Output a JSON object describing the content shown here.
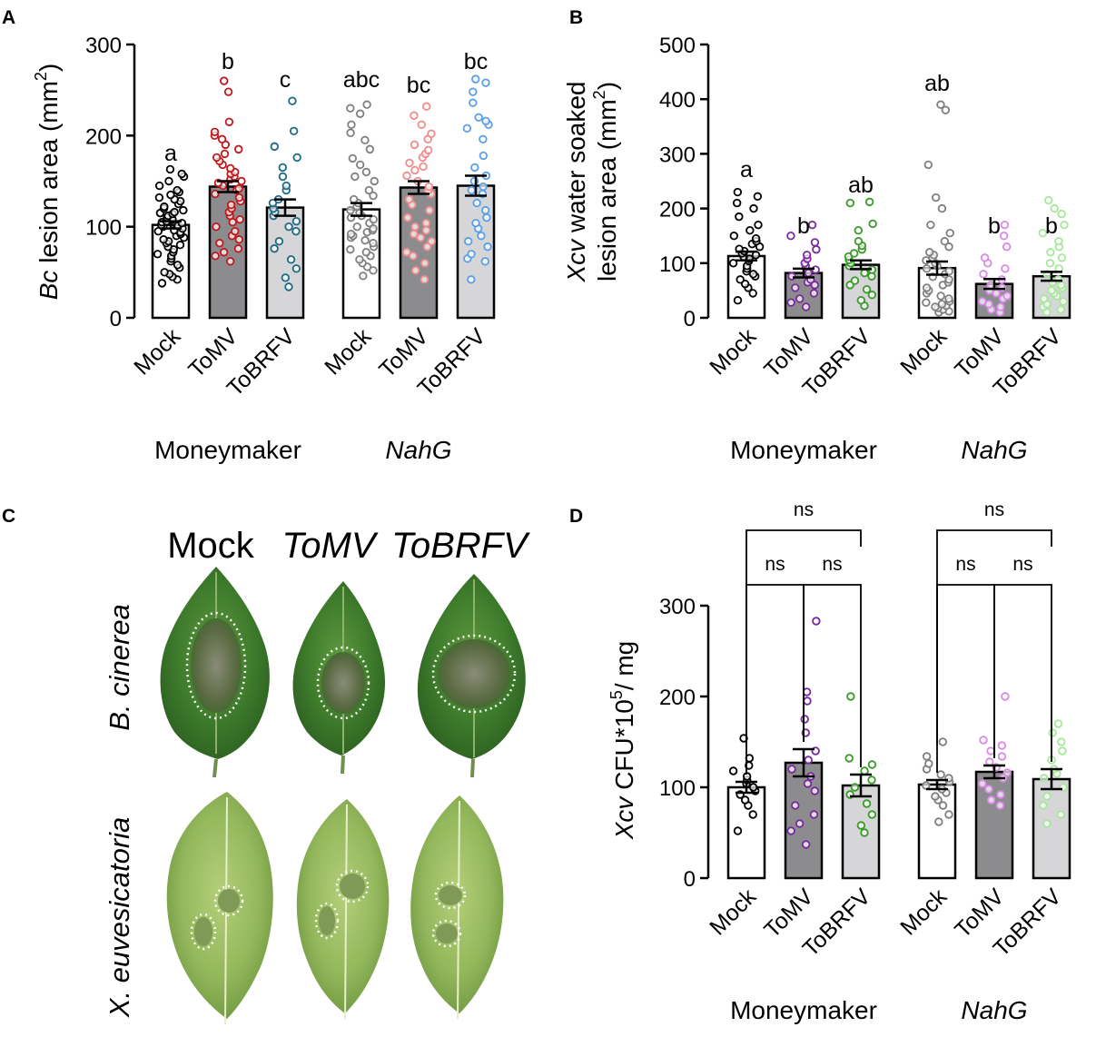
{
  "figure_labels": [
    "A",
    "B",
    "C",
    "D"
  ],
  "chart_data": [
    {
      "panel": "A",
      "type": "bar",
      "ylabel_italic": "Bc",
      "ylabel_rest": " lesion area (mm",
      "ylabel_sup": "2",
      "ylabel_close": ")",
      "ylim": [
        0,
        300
      ],
      "yticks": [
        0,
        100,
        200,
        300
      ],
      "categories": [
        "Mock",
        "ToMV",
        "ToBRFV",
        "Mock",
        "ToMV",
        "ToBRFV"
      ],
      "groups": [
        {
          "label": "Moneymaker",
          "italic": false
        },
        {
          "label": "NahG",
          "italic": true
        }
      ],
      "values": [
        102,
        144,
        121,
        119,
        143,
        145
      ],
      "errors": [
        4,
        6,
        9,
        7,
        7,
        11
      ],
      "letters": [
        "a",
        "b",
        "c",
        "abc",
        "bc",
        "bc"
      ],
      "bar_fill": [
        "#ffffff",
        "#8c8c8f",
        "#d6d6d8",
        "#ffffff",
        "#8c8c8f",
        "#d6d6d8"
      ],
      "point_color": [
        "#000000",
        "#c0191c",
        "#1e6b83",
        "#808080",
        "#f28b8b",
        "#5aa0e8"
      ],
      "points": [
        [
          38,
          42,
          45,
          48,
          50,
          55,
          58,
          62,
          65,
          68,
          70,
          72,
          75,
          78,
          80,
          82,
          84,
          86,
          88,
          90,
          92,
          94,
          95,
          96,
          98,
          100,
          101,
          102,
          104,
          105,
          106,
          108,
          110,
          112,
          114,
          115,
          116,
          118,
          120,
          122,
          125,
          128,
          130,
          132,
          135,
          138,
          140,
          145,
          150,
          155,
          158,
          163
        ],
        [
          62,
          68,
          72,
          76,
          82,
          86,
          90,
          95,
          100,
          105,
          108,
          112,
          116,
          120,
          124,
          128,
          132,
          136,
          140,
          142,
          145,
          148,
          150,
          152,
          155,
          158,
          160,
          164,
          168,
          172,
          176,
          180,
          185,
          190,
          196,
          200,
          204,
          215,
          248,
          260
        ],
        [
          34,
          44,
          54,
          64,
          76,
          84,
          95,
          100,
          106,
          112,
          116,
          120,
          126,
          130,
          140,
          145,
          155,
          165,
          176,
          188,
          205,
          238
        ],
        [
          46,
          52,
          56,
          60,
          64,
          68,
          72,
          75,
          78,
          82,
          85,
          88,
          90,
          92,
          94,
          96,
          98,
          100,
          104,
          108,
          110,
          112,
          115,
          118,
          122,
          126,
          130,
          134,
          140,
          150,
          155,
          160,
          168,
          175,
          185,
          195,
          203,
          212,
          224,
          230,
          234
        ],
        [
          42,
          52,
          60,
          68,
          72,
          78,
          84,
          88,
          92,
          96,
          100,
          104,
          110,
          118,
          124,
          130,
          136,
          140,
          144,
          150,
          156,
          162,
          166,
          170,
          176,
          180,
          184,
          190,
          196,
          202,
          212,
          222,
          232
        ],
        [
          42,
          62,
          65,
          70,
          78,
          84,
          90,
          98,
          104,
          110,
          118,
          126,
          136,
          140,
          144,
          150,
          156,
          165,
          178,
          196,
          208,
          212,
          216,
          220,
          236,
          248,
          258,
          262
        ]
      ]
    },
    {
      "panel": "B",
      "type": "bar",
      "ylabel_line1_italic": "Xcv",
      "ylabel_line1_rest": " water soaked",
      "ylabel_line2": "lesion area (mm",
      "ylabel_sup": "2",
      "ylabel_close": ")",
      "ylim": [
        0,
        500
      ],
      "yticks": [
        0,
        100,
        200,
        300,
        400,
        500
      ],
      "categories": [
        "Mock",
        "ToMV",
        "ToBRFV",
        "Mock",
        "ToMV",
        "ToBRFV"
      ],
      "groups": [
        {
          "label": "Moneymaker",
          "italic": false
        },
        {
          "label": "NahG",
          "italic": true
        }
      ],
      "values": [
        113,
        82,
        97,
        91,
        62,
        76
      ],
      "errors": [
        8,
        8,
        8,
        12,
        9,
        8
      ],
      "letters": [
        "a",
        "b",
        "ab",
        "ab",
        "b",
        "b"
      ],
      "bar_fill": [
        "#ffffff",
        "#8c8c8f",
        "#d6d6d8",
        "#ffffff",
        "#8c8c8f",
        "#d6d6d8"
      ],
      "point_color": [
        "#000000",
        "#7a2a9c",
        "#3a9a2a",
        "#808080",
        "#d98ae6",
        "#a6e89a"
      ],
      "points": [
        [
          32,
          45,
          55,
          62,
          70,
          76,
          80,
          85,
          90,
          95,
          100,
          104,
          108,
          112,
          115,
          118,
          122,
          126,
          130,
          135,
          140,
          145,
          150,
          160,
          170,
          185,
          200,
          210,
          222,
          230
        ],
        [
          20,
          28,
          35,
          45,
          55,
          60,
          65,
          70,
          76,
          82,
          88,
          95,
          100,
          108,
          115,
          125,
          138,
          150,
          170
        ],
        [
          22,
          32,
          42,
          52,
          60,
          68,
          76,
          82,
          88,
          95,
          100,
          106,
          112,
          118,
          125,
          132,
          140,
          160,
          172,
          210,
          212
        ],
        [
          10,
          12,
          15,
          18,
          20,
          22,
          25,
          28,
          30,
          35,
          40,
          45,
          50,
          55,
          60,
          65,
          70,
          75,
          80,
          85,
          90,
          95,
          100,
          105,
          110,
          115,
          120,
          130,
          140,
          155,
          170,
          200,
          220,
          280,
          380,
          390
        ],
        [
          10,
          15,
          20,
          25,
          30,
          35,
          40,
          45,
          50,
          55,
          60,
          70,
          80,
          90,
          100,
          110,
          130,
          150,
          170
        ],
        [
          10,
          15,
          20,
          25,
          30,
          35,
          40,
          45,
          50,
          55,
          60,
          65,
          70,
          80,
          90,
          100,
          110,
          120,
          130,
          140,
          155,
          170,
          190,
          200,
          215
        ]
      ]
    },
    {
      "panel": "D",
      "type": "bar",
      "ylabel_italic": "Xcv",
      "ylabel_rest": " CFU*10",
      "ylabel_sup": "5",
      "ylabel_close": "/ mg",
      "ylim": [
        0,
        300
      ],
      "yticks": [
        0,
        100,
        200,
        300
      ],
      "categories": [
        "Mock",
        "ToMV",
        "ToBRFV",
        "Mock",
        "ToMV",
        "ToBRFV"
      ],
      "groups": [
        {
          "label": "Moneymaker",
          "italic": false
        },
        {
          "label": "NahG",
          "italic": true
        }
      ],
      "values": [
        100,
        127,
        102,
        103,
        117,
        109
      ],
      "errors": [
        6,
        15,
        12,
        5,
        7,
        11
      ],
      "bar_fill": [
        "#ffffff",
        "#8c8c8f",
        "#d6d6d8",
        "#ffffff",
        "#8c8c8f",
        "#d6d6d8"
      ],
      "point_color": [
        "#000000",
        "#7a2a9c",
        "#3a9a2a",
        "#808080",
        "#d98ae6",
        "#a6e89a"
      ],
      "points": [
        [
          52,
          70,
          80,
          86,
          92,
          96,
          100,
          104,
          108,
          112,
          118,
          124,
          132,
          154
        ],
        [
          37,
          52,
          60,
          70,
          80,
          96,
          104,
          112,
          120,
          130,
          140,
          160,
          175,
          195,
          205,
          283
        ],
        [
          50,
          58,
          70,
          82,
          92,
          100,
          108,
          118,
          125,
          132,
          200
        ],
        [
          62,
          70,
          80,
          86,
          90,
          94,
          98,
          102,
          106,
          110,
          114,
          120,
          126,
          134,
          150
        ],
        [
          80,
          86,
          92,
          98,
          104,
          110,
          116,
          122,
          128,
          134,
          140,
          146,
          152,
          200
        ],
        [
          60,
          70,
          80,
          90,
          100,
          110,
          115,
          120,
          130,
          140,
          150,
          160,
          170
        ]
      ],
      "comparisons": [
        {
          "from": 0,
          "to": 2,
          "label": "ns",
          "tier": "upper"
        },
        {
          "from": 0,
          "to": 1,
          "label": "ns",
          "tier": "lower"
        },
        {
          "from": 1,
          "to": 2,
          "label": "ns",
          "tier": "lower"
        },
        {
          "from": 3,
          "to": 5,
          "label": "ns",
          "tier": "upper"
        },
        {
          "from": 3,
          "to": 4,
          "label": "ns",
          "tier": "lower"
        },
        {
          "from": 4,
          "to": 5,
          "label": "ns",
          "tier": "lower"
        }
      ]
    }
  ],
  "photo_panel": {
    "columns": [
      "Mock",
      "ToMV",
      "ToBRFV"
    ],
    "columns_italic": [
      false,
      true,
      true
    ],
    "rows": [
      "B. cinerea",
      "X. euvesicatoria"
    ]
  }
}
